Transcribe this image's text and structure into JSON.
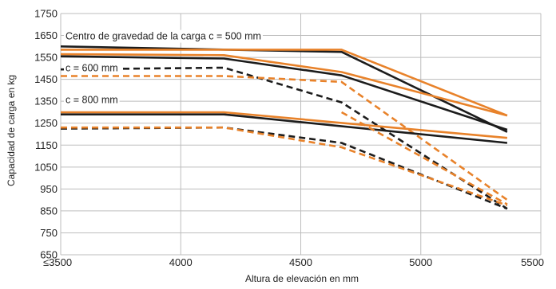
{
  "chart_data": {
    "type": "line",
    "xlabel": "Altura de elevación en mm",
    "ylabel": "Capacidad de carga en kg",
    "xlim": [
      3500,
      5500
    ],
    "ylim": [
      650,
      1750
    ],
    "x_ticks": [
      3500,
      4000,
      4500,
      5000,
      5500
    ],
    "x_tick_labels": [
      "≤3500",
      "4000",
      "4500",
      "5000",
      "5500"
    ],
    "y_ticks": [
      650,
      750,
      850,
      950,
      1050,
      1150,
      1250,
      1350,
      1450,
      1550,
      1650,
      1750
    ],
    "y_tick_labels": [
      "650",
      "750",
      "850",
      "950",
      "1050",
      "1150",
      "1250",
      "1350",
      "1450",
      "1550",
      "1650",
      "1750"
    ],
    "grid": true,
    "annotations": [
      {
        "text": "Centro de gravedad de la carga c = 500 mm",
        "x": 3500,
        "y": 1648
      },
      {
        "text": "c = 600 mm",
        "x": 3500,
        "y": 1504
      },
      {
        "text": "c = 800 mm",
        "x": 3500,
        "y": 1358
      }
    ],
    "series": [
      {
        "color": "#1c1c1c",
        "style": "solid",
        "x": [
          3500,
          4670,
          5360
        ],
        "y": [
          1600,
          1575,
          1210
        ]
      },
      {
        "color": "#e8822a",
        "style": "solid",
        "x": [
          3500,
          4670,
          5360
        ],
        "y": [
          1585,
          1585,
          1285
        ]
      },
      {
        "color": "#1c1c1c",
        "style": "solid",
        "x": [
          3500,
          4180,
          4670,
          5360
        ],
        "y": [
          1555,
          1545,
          1468,
          1220
        ]
      },
      {
        "color": "#e8822a",
        "style": "solid",
        "x": [
          3500,
          4180,
          4670,
          5360
        ],
        "y": [
          1565,
          1560,
          1483,
          1285
        ]
      },
      {
        "color": "#1c1c1c",
        "style": "dashed",
        "x": [
          3500,
          4180,
          4670,
          5360
        ],
        "y": [
          1495,
          1503,
          1345,
          860
        ]
      },
      {
        "color": "#e8822a",
        "style": "dashed",
        "x": [
          3500,
          4180,
          4670,
          5360
        ],
        "y": [
          1465,
          1465,
          1438,
          900
        ]
      },
      {
        "color": "#1c1c1c",
        "style": "solid",
        "x": [
          3500,
          4180,
          5360
        ],
        "y": [
          1290,
          1290,
          1160
        ]
      },
      {
        "color": "#e8822a",
        "style": "solid",
        "x": [
          3500,
          4180,
          5360
        ],
        "y": [
          1300,
          1300,
          1183
        ]
      },
      {
        "color": "#1c1c1c",
        "style": "dashed",
        "x": [
          3500,
          4180,
          4670,
          5360
        ],
        "y": [
          1225,
          1230,
          1160,
          860
        ]
      },
      {
        "color": "#e8822a",
        "style": "dashed",
        "x": [
          3500,
          4180,
          4670,
          5360
        ],
        "y": [
          1230,
          1230,
          1140,
          875
        ]
      },
      {
        "color": "#e8822a",
        "style": "dashed",
        "x": [
          4670,
          5360
        ],
        "y": [
          1300,
          880
        ]
      }
    ]
  }
}
